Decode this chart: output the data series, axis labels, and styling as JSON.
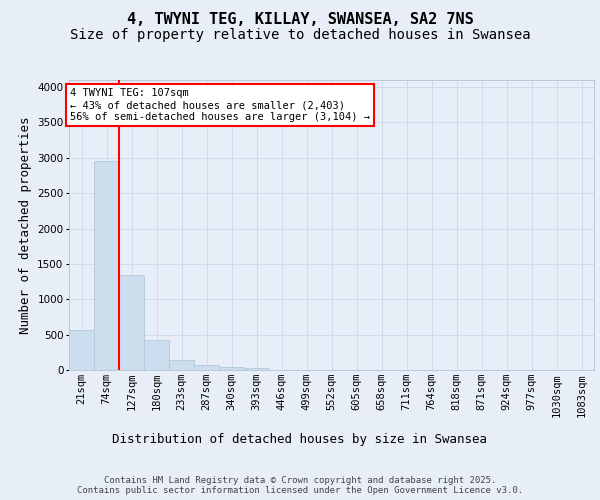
{
  "title_line1": "4, TWYNI TEG, KILLAY, SWANSEA, SA2 7NS",
  "title_line2": "Size of property relative to detached houses in Swansea",
  "xlabel": "Distribution of detached houses by size in Swansea",
  "ylabel": "Number of detached properties",
  "bin_labels": [
    "21sqm",
    "74sqm",
    "127sqm",
    "180sqm",
    "233sqm",
    "287sqm",
    "340sqm",
    "393sqm",
    "446sqm",
    "499sqm",
    "552sqm",
    "605sqm",
    "658sqm",
    "711sqm",
    "764sqm",
    "818sqm",
    "871sqm",
    "924sqm",
    "977sqm",
    "1030sqm",
    "1083sqm"
  ],
  "bar_heights": [
    570,
    2960,
    1340,
    430,
    145,
    75,
    45,
    30,
    0,
    0,
    0,
    0,
    0,
    0,
    0,
    0,
    0,
    0,
    0,
    0,
    0
  ],
  "bar_color": "#ccdded",
  "bar_edgecolor": "#aac4d8",
  "grid_color": "#d0dcea",
  "background_color": "#e8eef8",
  "vline_color": "red",
  "vline_x_index": 1,
  "annotation_line1": "4 TWYNI TEG: 107sqm",
  "annotation_line2": "← 43% of detached houses are smaller (2,403)",
  "annotation_line3": "56% of semi-detached houses are larger (3,104) →",
  "annotation_box_color": "red",
  "annotation_bg": "white",
  "ylim": [
    0,
    4100
  ],
  "yticks": [
    0,
    500,
    1000,
    1500,
    2000,
    2500,
    3000,
    3500,
    4000
  ],
  "title_fontsize": 11,
  "subtitle_fontsize": 10,
  "ylabel_fontsize": 9,
  "xlabel_fontsize": 9,
  "tick_fontsize": 7.5,
  "annotation_fontsize": 7.5,
  "footer_fontsize": 6.5,
  "footer_line1": "Contains HM Land Registry data © Crown copyright and database right 2025.",
  "footer_line2": "Contains public sector information licensed under the Open Government Licence v3.0."
}
